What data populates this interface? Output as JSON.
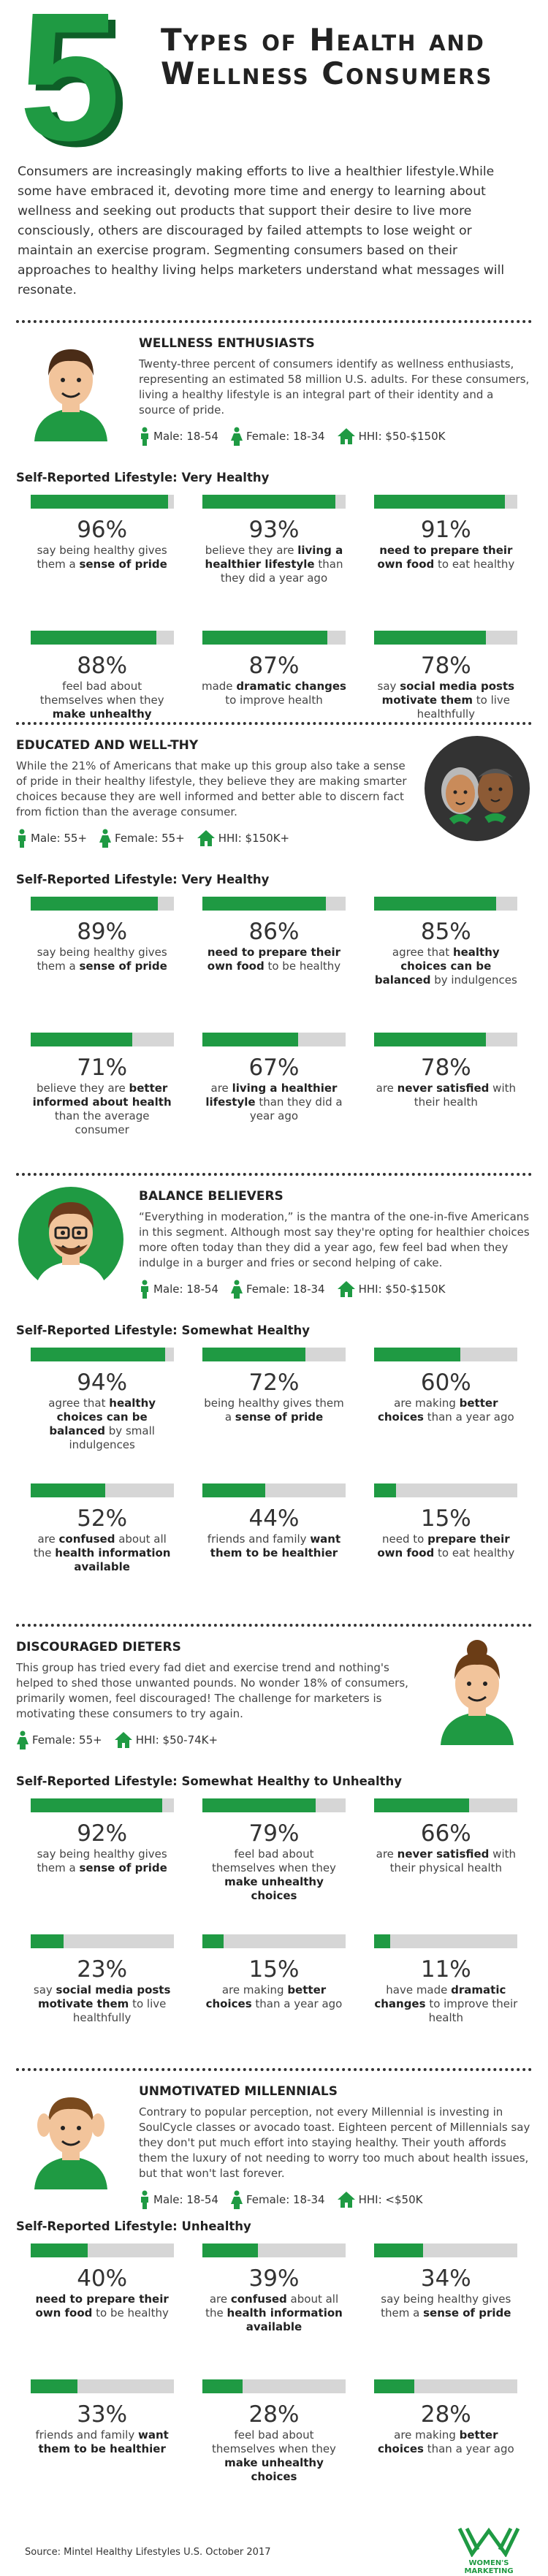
{
  "header": {
    "number": "5",
    "title": "Types of Health and Wellness Consumers",
    "intro": "Consumers are increasingly making efforts to live a healthier lifestyle.While some have embraced it, devoting more time and energy to learning about wellness and seeking out products that support their desire to live more consciously, others are discouraged by failed attempts to lose weight or maintain an exercise program. Segmenting consumers based on their approaches to healthy living helps marketers understand what messages will resonate."
  },
  "segments": [
    {
      "name": "WELLNESS ENTHUSIASTS",
      "description": "Twenty-three percent of consumers identify as wellness enthusiasts, representing an estimated 58 million U.S. adults. For these consumers, living a healthy lifestyle is an integral part of their identity and a source of pride.",
      "demographics": [
        {
          "icon": "male",
          "text": "Male: 18-54"
        },
        {
          "icon": "female",
          "text": "Female: 18-34"
        },
        {
          "icon": "house",
          "text": "HHI: $50-$150K"
        }
      ],
      "lifestyle": "Self-Reported Lifestyle: Very Healthy",
      "stats": [
        {
          "value": 96,
          "label": "96%",
          "text": [
            "say being healthy gives them a ",
            {
              "text": "sense of pride",
              "bold": true
            }
          ]
        },
        {
          "value": 93,
          "label": "93%",
          "text": [
            "believe they are ",
            {
              "text": "living a healthier lifestyle",
              "bold": true
            },
            " than they did a year ago"
          ]
        },
        {
          "value": 91,
          "label": "91%",
          "text": [
            {
              "text": "need to prepare their own food",
              "bold": true
            },
            " to eat healthy"
          ]
        },
        {
          "value": 88,
          "label": "88%",
          "text": [
            "feel bad about themselves when they ",
            {
              "text": "make unhealthy choices",
              "bold": true
            }
          ]
        },
        {
          "value": 87,
          "label": "87%",
          "text": [
            "made ",
            {
              "text": "dramatic changes",
              "bold": true
            },
            " to improve health"
          ]
        },
        {
          "value": 78,
          "label": "78%",
          "text": [
            "say ",
            {
              "text": "social media posts motivate them",
              "bold": true
            },
            " to live healthfully"
          ]
        }
      ]
    },
    {
      "name": "EDUCATED AND WELL-THY",
      "description": "While the 21% of Americans that make up this group also take a sense of pride in their healthy lifestyle, they believe they are making smarter choices because they are well informed and better able to discern fact from fiction than the average consumer.",
      "demographics": [
        {
          "icon": "male",
          "text": "Male: 55+"
        },
        {
          "icon": "female",
          "text": "Female: 55+"
        },
        {
          "icon": "house",
          "text": "HHI: $150K+"
        }
      ],
      "lifestyle": "Self-Reported Lifestyle: Very Healthy",
      "stats": [
        {
          "value": 89,
          "label": "89%",
          "text": [
            "say being healthy gives them a ",
            {
              "text": "sense of pride",
              "bold": true
            }
          ]
        },
        {
          "value": 86,
          "label": "86%",
          "text": [
            {
              "text": "need to prepare their own food",
              "bold": true
            },
            " to be healthy"
          ]
        },
        {
          "value": 85,
          "label": "85%",
          "text": [
            "agree that ",
            {
              "text": "healthy choices can be balanced",
              "bold": true
            },
            " by indulgences"
          ]
        },
        {
          "value": 71,
          "label": "71%",
          "text": [
            "believe they are ",
            {
              "text": "better informed about health",
              "bold": true
            },
            " than the average consumer"
          ]
        },
        {
          "value": 67,
          "label": "67%",
          "text": [
            "are ",
            {
              "text": "living a healthier lifestyle",
              "bold": true
            },
            " than they did a year ago"
          ]
        },
        {
          "value": 78,
          "label": "78%",
          "text": [
            "are ",
            {
              "text": "never satisfied",
              "bold": true
            },
            " with their health"
          ]
        }
      ]
    },
    {
      "name": "BALANCE BELIEVERS",
      "description": "“Everything in moderation,” is the mantra of the one-in-five Americans in this segment. Although most say they're opting for healthier choices more often today than they did a year ago, few feel bad when they indulge in a burger and fries or second helping of cake.",
      "demographics": [
        {
          "icon": "male",
          "text": "Male: 18-54"
        },
        {
          "icon": "female",
          "text": "Female: 18-34"
        },
        {
          "icon": "house",
          "text": "HHI: $50-$150K"
        }
      ],
      "lifestyle": "Self-Reported Lifestyle: Somewhat Healthy",
      "stats": [
        {
          "value": 94,
          "label": "94%",
          "text": [
            "agree that ",
            {
              "text": "healthy choices can be balanced",
              "bold": true
            },
            " by small indulgences"
          ]
        },
        {
          "value": 72,
          "label": "72%",
          "text": [
            "being healthy gives them a ",
            {
              "text": "sense of pride",
              "bold": true
            }
          ]
        },
        {
          "value": 60,
          "label": "60%",
          "text": [
            "are making ",
            {
              "text": "better choices",
              "bold": true
            },
            " than a year ago"
          ]
        },
        {
          "value": 52,
          "label": "52%",
          "text": [
            "are ",
            {
              "text": "confused",
              "bold": true
            },
            " about all the ",
            {
              "text": "health information available",
              "bold": true
            }
          ]
        },
        {
          "value": 44,
          "label": "44%",
          "text": [
            "friends and family ",
            {
              "text": "want them to be healthier",
              "bold": true
            }
          ]
        },
        {
          "value": 15,
          "label": "15%",
          "text": [
            "need to ",
            {
              "text": "prepare their own food",
              "bold": true
            },
            " to eat healthy"
          ]
        }
      ]
    },
    {
      "name": "DISCOURAGED DIETERS",
      "description": "This group has tried every fad diet and exercise trend and nothing's helped to shed those unwanted pounds. No wonder 18% of consumers, primarily women, feel discouraged!  The challenge for marketers is motivating these consumers to try again.",
      "demographics": [
        {
          "icon": "female",
          "text": "Female: 55+"
        },
        {
          "icon": "house",
          "text": "HHI: $50-74K+"
        }
      ],
      "lifestyle": "Self-Reported Lifestyle: Somewhat Healthy to Unhealthy",
      "stats": [
        {
          "value": 92,
          "label": "92%",
          "text": [
            "say being healthy gives them a ",
            {
              "text": "sense of pride",
              "bold": true
            }
          ]
        },
        {
          "value": 79,
          "label": "79%",
          "text": [
            "feel bad about themselves when they ",
            {
              "text": "make unhealthy choices",
              "bold": true
            }
          ]
        },
        {
          "value": 66,
          "label": "66%",
          "text": [
            "are ",
            {
              "text": "never satisfied",
              "bold": true
            },
            " with their physical health"
          ]
        },
        {
          "value": 23,
          "label": "23%",
          "text": [
            "say ",
            {
              "text": "social media posts motivate them",
              "bold": true
            },
            " to live healthfully"
          ]
        },
        {
          "value": 15,
          "label": "15%",
          "text": [
            "are making ",
            {
              "text": "better choices",
              "bold": true
            },
            " than a year ago"
          ]
        },
        {
          "value": 11,
          "label": "11%",
          "text": [
            "have made ",
            {
              "text": "dramatic changes",
              "bold": true
            },
            " to improve their health"
          ]
        }
      ]
    },
    {
      "name": "UNMOTIVATED MILLENNIALS",
      "description": "Contrary to popular perception, not every Millennial is investing in SoulCycle classes or avocado toast. Eighteen percent of Millennials say they don't put much effort into staying healthy. Their youth affords them the luxury of not needing to worry too much about health issues, but that won't last forever.",
      "demographics": [
        {
          "icon": "male",
          "text": "Male: 18-54"
        },
        {
          "icon": "female",
          "text": "Female: 18-34"
        },
        {
          "icon": "house",
          "text": "HHI: <$50K"
        }
      ],
      "lifestyle": "Self-Reported Lifestyle: Unhealthy",
      "stats": [
        {
          "value": 40,
          "label": "40%",
          "text": [
            {
              "text": "need to prepare their own food",
              "bold": true
            },
            " to be healthy"
          ]
        },
        {
          "value": 39,
          "label": "39%",
          "text": [
            "are ",
            {
              "text": "confused",
              "bold": true
            },
            " about all the ",
            {
              "text": "health information available",
              "bold": true
            }
          ]
        },
        {
          "value": 34,
          "label": "34%",
          "text": [
            "say being healthy gives them a ",
            {
              "text": "sense of pride",
              "bold": true
            }
          ]
        },
        {
          "value": 33,
          "label": "33%",
          "text": [
            "friends and family ",
            {
              "text": "want them to be healthier",
              "bold": true
            }
          ]
        },
        {
          "value": 28,
          "label": "28%",
          "text": [
            "feel bad about themselves when they ",
            {
              "text": "make unhealthy choices",
              "bold": true
            }
          ]
        },
        {
          "value": 28,
          "label": "28%",
          "text": [
            "are making ",
            {
              "text": "better choices",
              "bold": true
            },
            " than a year ago"
          ]
        }
      ]
    }
  ],
  "source": "Source: Mintel Healthy Lifestyles U.S. October 2017",
  "logo": "WOMEN'S MARKETING"
}
